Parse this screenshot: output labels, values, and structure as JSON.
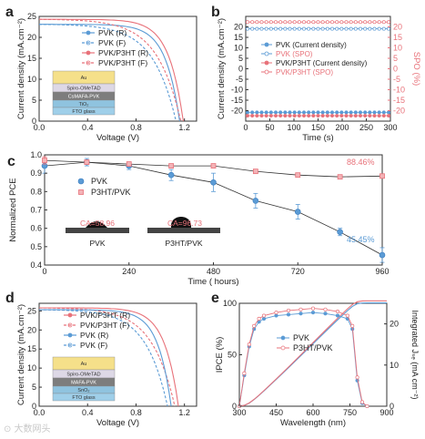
{
  "chart_data": [
    {
      "panel": "a",
      "type": "line",
      "xlabel": "Voltage (V)",
      "ylabel": "Current density (mA.cm⁻²)",
      "xlim": [
        0.0,
        1.3
      ],
      "ylim": [
        0,
        25
      ],
      "xticks": [
        0.0,
        0.4,
        0.8,
        1.2
      ],
      "yticks": [
        0,
        5,
        10,
        15,
        20,
        25
      ],
      "legend": "top-right",
      "series": [
        {
          "name": "PVK (R)",
          "color": "#5b9bd5",
          "style": "solid",
          "jsc": 23.1,
          "voc": 1.16,
          "shape": 10
        },
        {
          "name": "PVK (F)",
          "color": "#5b9bd5",
          "style": "dashed",
          "jsc": 23.1,
          "voc": 1.13,
          "shape": 6
        },
        {
          "name": "PVK/P3HT (R)",
          "color": "#e8727a",
          "style": "solid",
          "jsc": 24.3,
          "voc": 1.19,
          "shape": 10
        },
        {
          "name": "PVK/P3HT (F)",
          "color": "#e8727a",
          "style": "dashed",
          "jsc": 24.3,
          "voc": 1.17,
          "shape": 6
        }
      ],
      "stack": [
        "Au",
        "Spiro-OMeTAD",
        "CsMAFA-PVK",
        "TiO₂",
        "FTO glass"
      ]
    },
    {
      "panel": "b",
      "type": "line",
      "xlabel": "Time (s)",
      "ylabel": "Current density (mA.cm⁻²)",
      "ylabel2": "SPO (%)",
      "xlim": [
        0,
        300
      ],
      "ylim": [
        -25,
        25
      ],
      "ylim2": [
        -25,
        25
      ],
      "xticks": [
        0,
        50,
        100,
        150,
        200,
        250,
        300
      ],
      "yticks": [
        -20,
        -15,
        -10,
        -5,
        0,
        5,
        10,
        15,
        20
      ],
      "legend": "center",
      "series": [
        {
          "name": "PVK (Current density)",
          "color": "#5b9bd5",
          "y": -20.8,
          "marker": "circle"
        },
        {
          "name": "PVK (SPO)",
          "color": "#5b9bd5",
          "y": 19.1,
          "marker": "circle-open"
        },
        {
          "name": "PVK/P3HT (Current density)",
          "color": "#e8727a",
          "y": -22.4,
          "marker": "circle"
        },
        {
          "name": "PVK/P3HT (SPO)",
          "color": "#e8727a",
          "y": 22.3,
          "marker": "circle-open"
        }
      ]
    },
    {
      "panel": "c",
      "type": "line",
      "xlabel": "Time ( hours)",
      "ylabel": "Normalized PCE",
      "xlim": [
        0,
        960
      ],
      "ylim": [
        0.4,
        1.0
      ],
      "xticks": [
        0,
        240,
        480,
        720,
        960
      ],
      "yticks": [
        0.4,
        0.5,
        0.6,
        0.7,
        0.8,
        0.9,
        1.0
      ],
      "legend": "top-left",
      "series": [
        {
          "name": "PVK",
          "color": "#5b9bd5",
          "marker": "circle",
          "x": [
            0,
            120,
            240,
            360,
            480,
            600,
            720,
            840,
            960
          ],
          "y": [
            0.94,
            0.96,
            0.94,
            0.89,
            0.85,
            0.75,
            0.69,
            0.58,
            0.4545
          ],
          "err": [
            0.04,
            0.02,
            0.02,
            0.03,
            0.05,
            0.04,
            0.04,
            0.02,
            0.04
          ]
        },
        {
          "name": "P3HT/PVK",
          "color": "#e8727a",
          "marker": "square",
          "x": [
            0,
            120,
            240,
            360,
            480,
            600,
            720,
            840,
            960
          ],
          "y": [
            0.97,
            0.96,
            0.95,
            0.94,
            0.94,
            0.91,
            0.89,
            0.88,
            0.8846
          ],
          "err": [
            0.02,
            0.01,
            0.01,
            0.01,
            0.01,
            0.01,
            0.01,
            0.01,
            0.01
          ]
        }
      ],
      "annotations": {
        "pvk_end": "45.45%",
        "p3ht_end": "88.46%",
        "ca_pvk": "CA=58.96",
        "ca_p3ht": "CA=96.73",
        "drop_pvk": "PVK",
        "drop_p3ht": "P3HT/PVK"
      }
    },
    {
      "panel": "d",
      "type": "line",
      "xlabel": "Voltage (V)",
      "ylabel": "Current density (mA.cm⁻²)",
      "xlim": [
        0.0,
        1.3
      ],
      "ylim": [
        0,
        27
      ],
      "xticks": [
        0.0,
        0.4,
        0.8,
        1.2
      ],
      "yticks": [
        0,
        5,
        10,
        15,
        20,
        25
      ],
      "legend": "top-right",
      "series": [
        {
          "name": "PVK/P3HT (R)",
          "color": "#e8727a",
          "style": "solid",
          "jsc": 25.8,
          "voc": 1.15,
          "shape": 10
        },
        {
          "name": "PVK/P3HT (F)",
          "color": "#e8727a",
          "style": "dashed",
          "jsc": 25.8,
          "voc": 1.12,
          "shape": 6
        },
        {
          "name": "PVK (R)",
          "color": "#5b9bd5",
          "style": "solid",
          "jsc": 25.3,
          "voc": 1.09,
          "shape": 10
        },
        {
          "name": "PVK (F)",
          "color": "#5b9bd5",
          "style": "dashed",
          "jsc": 25.3,
          "voc": 1.06,
          "shape": 6
        }
      ],
      "stack": [
        "Au",
        "Spiro-OMeTAD",
        "MAFA-PVK",
        "SnO₂",
        "FTO glass"
      ]
    },
    {
      "panel": "e",
      "type": "line",
      "xlabel": "Wavelength (nm)",
      "ylabel": "IPCE (%)",
      "ylabel2": "Integrated Jₛₑ (mA cm⁻²)",
      "xlim": [
        300,
        900
      ],
      "ylim": [
        0,
        100
      ],
      "ylim2": [
        0,
        25
      ],
      "xticks": [
        300,
        450,
        600,
        750,
        900
      ],
      "yticks": [
        0,
        50,
        100
      ],
      "yticks2": [
        0,
        10,
        20
      ],
      "legend": "center",
      "series": [
        {
          "name": "PVK",
          "color": "#5b9bd5",
          "marker": "circle",
          "x": [
            300,
            320,
            340,
            360,
            380,
            400,
            450,
            500,
            550,
            600,
            650,
            700,
            740,
            760,
            780,
            800,
            820
          ],
          "y": [
            0,
            30,
            58,
            75,
            82,
            85,
            88,
            89,
            90,
            91,
            90,
            88,
            85,
            75,
            25,
            3,
            0
          ]
        },
        {
          "name": "P3HT/PVK",
          "color": "#e8727a",
          "marker": "circle-open",
          "x": [
            300,
            320,
            340,
            360,
            380,
            400,
            450,
            500,
            550,
            600,
            650,
            700,
            740,
            760,
            780,
            800,
            820
          ],
          "y": [
            0,
            32,
            60,
            78,
            85,
            88,
            91,
            93,
            94,
            95,
            94,
            92,
            88,
            78,
            28,
            4,
            0
          ]
        }
      ],
      "integrated": {
        "max": 25.6
      }
    }
  ],
  "labels": {
    "a": "a",
    "b": "b",
    "c": "c",
    "d": "d",
    "e": "e"
  },
  "watermark": "⊙ 大数网头"
}
